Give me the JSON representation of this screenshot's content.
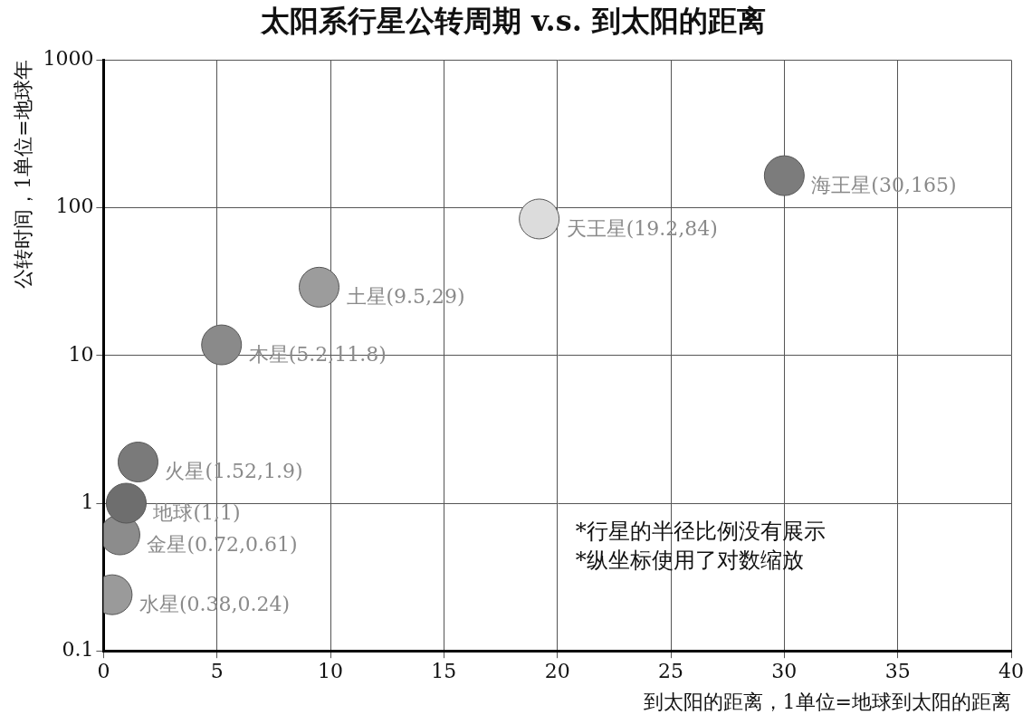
{
  "chart_data": {
    "type": "scatter",
    "title": "太阳系行星公转周期 v.s. 到太阳的距离",
    "x_label": "到太阳的距离，1单位=地球到太阳的距离",
    "y_label": "公转时间，1单位=地球年",
    "x": [
      0.38,
      0.72,
      1,
      1.52,
      5.2,
      9.5,
      19.2,
      30
    ],
    "values": [
      0.24,
      0.61,
      1,
      1.9,
      11.8,
      29,
      84,
      165
    ],
    "labels": [
      "水星(0.38,0.24)",
      "金星(0.72,0.61)",
      "地球(1,1)",
      "火星(1.52,1.9)",
      "木星(5.2,11.8)",
      "土星(9.5,29)",
      "天王星(19.2,84)",
      "海王星(30,165)"
    ],
    "colors": [
      "#9a9a9a",
      "#8c8c8c",
      "#6e6e6e",
      "#7a7a7a",
      "#8a8a8a",
      "#9c9c9c",
      "#dcdcdc",
      "#7c7c7c"
    ],
    "marker": "circle",
    "xlim": [
      0,
      40
    ],
    "xticks": [
      0,
      5,
      10,
      15,
      20,
      25,
      30,
      35,
      40
    ],
    "ylim": [
      0.1,
      1000
    ],
    "yticks": [
      0.1,
      1,
      10,
      100,
      1000
    ],
    "log": "y",
    "grid": true,
    "annotations": [
      "*行星的半径比例没有展示",
      "*纵坐标使用了对数缩放"
    ]
  }
}
